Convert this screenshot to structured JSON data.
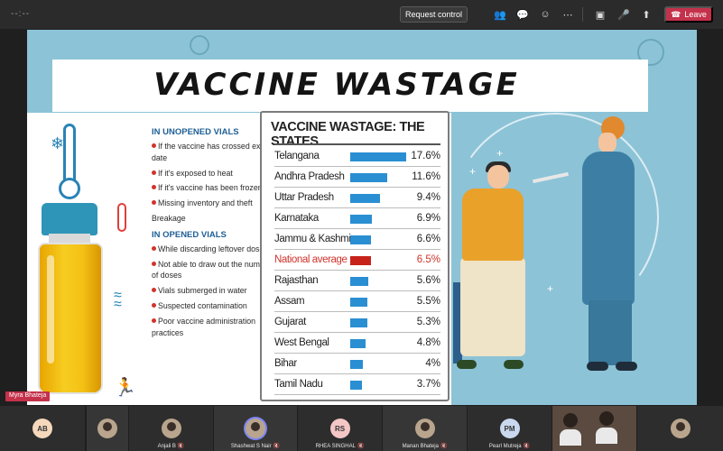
{
  "meeting": {
    "timer": "--:--",
    "request_control_label": "Request control",
    "leave_label": "Leave",
    "toolbar_icons": [
      "people-icon",
      "chat-icon",
      "reactions-icon",
      "more-icon",
      "camera-icon",
      "mic-icon",
      "share-icon"
    ]
  },
  "slide": {
    "title": "VACCINE WASTAGE",
    "unopened_heading": "IN UNOPENED VIALS",
    "unopened_items": [
      "If the vaccine has crossed expiry date",
      "If it's exposed to heat",
      "If it's vaccine has been frozen",
      "Missing inventory and theft"
    ],
    "unopened_break_word": "Breakage",
    "opened_heading": "IN OPENED VIALS",
    "opened_items": [
      "While discarding leftover doses",
      "Not able to draw out the number of doses",
      "Vials submerged in water",
      "Suspected contamination",
      "Poor vaccine administration practices"
    ],
    "table_title": "VACCINE WASTAGE: THE STATES",
    "states": [
      {
        "name": "Telangana",
        "value": 17.6,
        "label": "17.6%"
      },
      {
        "name": "Andhra Pradesh",
        "value": 11.6,
        "label": "11.6%"
      },
      {
        "name": "Uttar Pradesh",
        "value": 9.4,
        "label": "9.4%"
      },
      {
        "name": "Karnataka",
        "value": 6.9,
        "label": "6.9%"
      },
      {
        "name": "Jammu & Kashmir",
        "value": 6.6,
        "label": "6.6%"
      },
      {
        "name": "National average",
        "value": 6.5,
        "label": "6.5%",
        "highlight": true
      },
      {
        "name": "Rajasthan",
        "value": 5.6,
        "label": "5.6%"
      },
      {
        "name": "Assam",
        "value": 5.5,
        "label": "5.5%"
      },
      {
        "name": "Gujarat",
        "value": 5.3,
        "label": "5.3%"
      },
      {
        "name": "West Bengal",
        "value": 4.8,
        "label": "4.8%"
      },
      {
        "name": "Bihar",
        "value": 4,
        "label": "4%"
      },
      {
        "name": "Tamil Nadu",
        "value": 3.7,
        "label": "3.7%"
      }
    ],
    "presenter": "Myra Bhateja"
  },
  "participants": [
    {
      "initials": "AB",
      "name": "",
      "type": "initials",
      "color": "#f6d8bd"
    },
    {
      "initials": "",
      "name": "",
      "type": "photo"
    },
    {
      "initials": "",
      "name": "Anjali B",
      "type": "photo"
    },
    {
      "initials": "",
      "name": "Shashwat S Nair",
      "type": "photo",
      "speaking": true
    },
    {
      "initials": "RS",
      "name": "RHEA SINGHAL",
      "type": "initials",
      "color": "#f4c6c6"
    },
    {
      "initials": "",
      "name": "Manan Bhateja",
      "type": "photo"
    },
    {
      "initials": "PM",
      "name": "Pearl Mutreja",
      "type": "initials",
      "color": "#c9d8ee"
    },
    {
      "initials": "",
      "name": "",
      "type": "video"
    },
    {
      "initials": "",
      "name": "",
      "type": "photo"
    }
  ],
  "colors": {
    "leave": "#c4314b",
    "bar": "#2a8fd2",
    "highlight": "#c8231b",
    "slide_bg": "#8cc3d7"
  }
}
